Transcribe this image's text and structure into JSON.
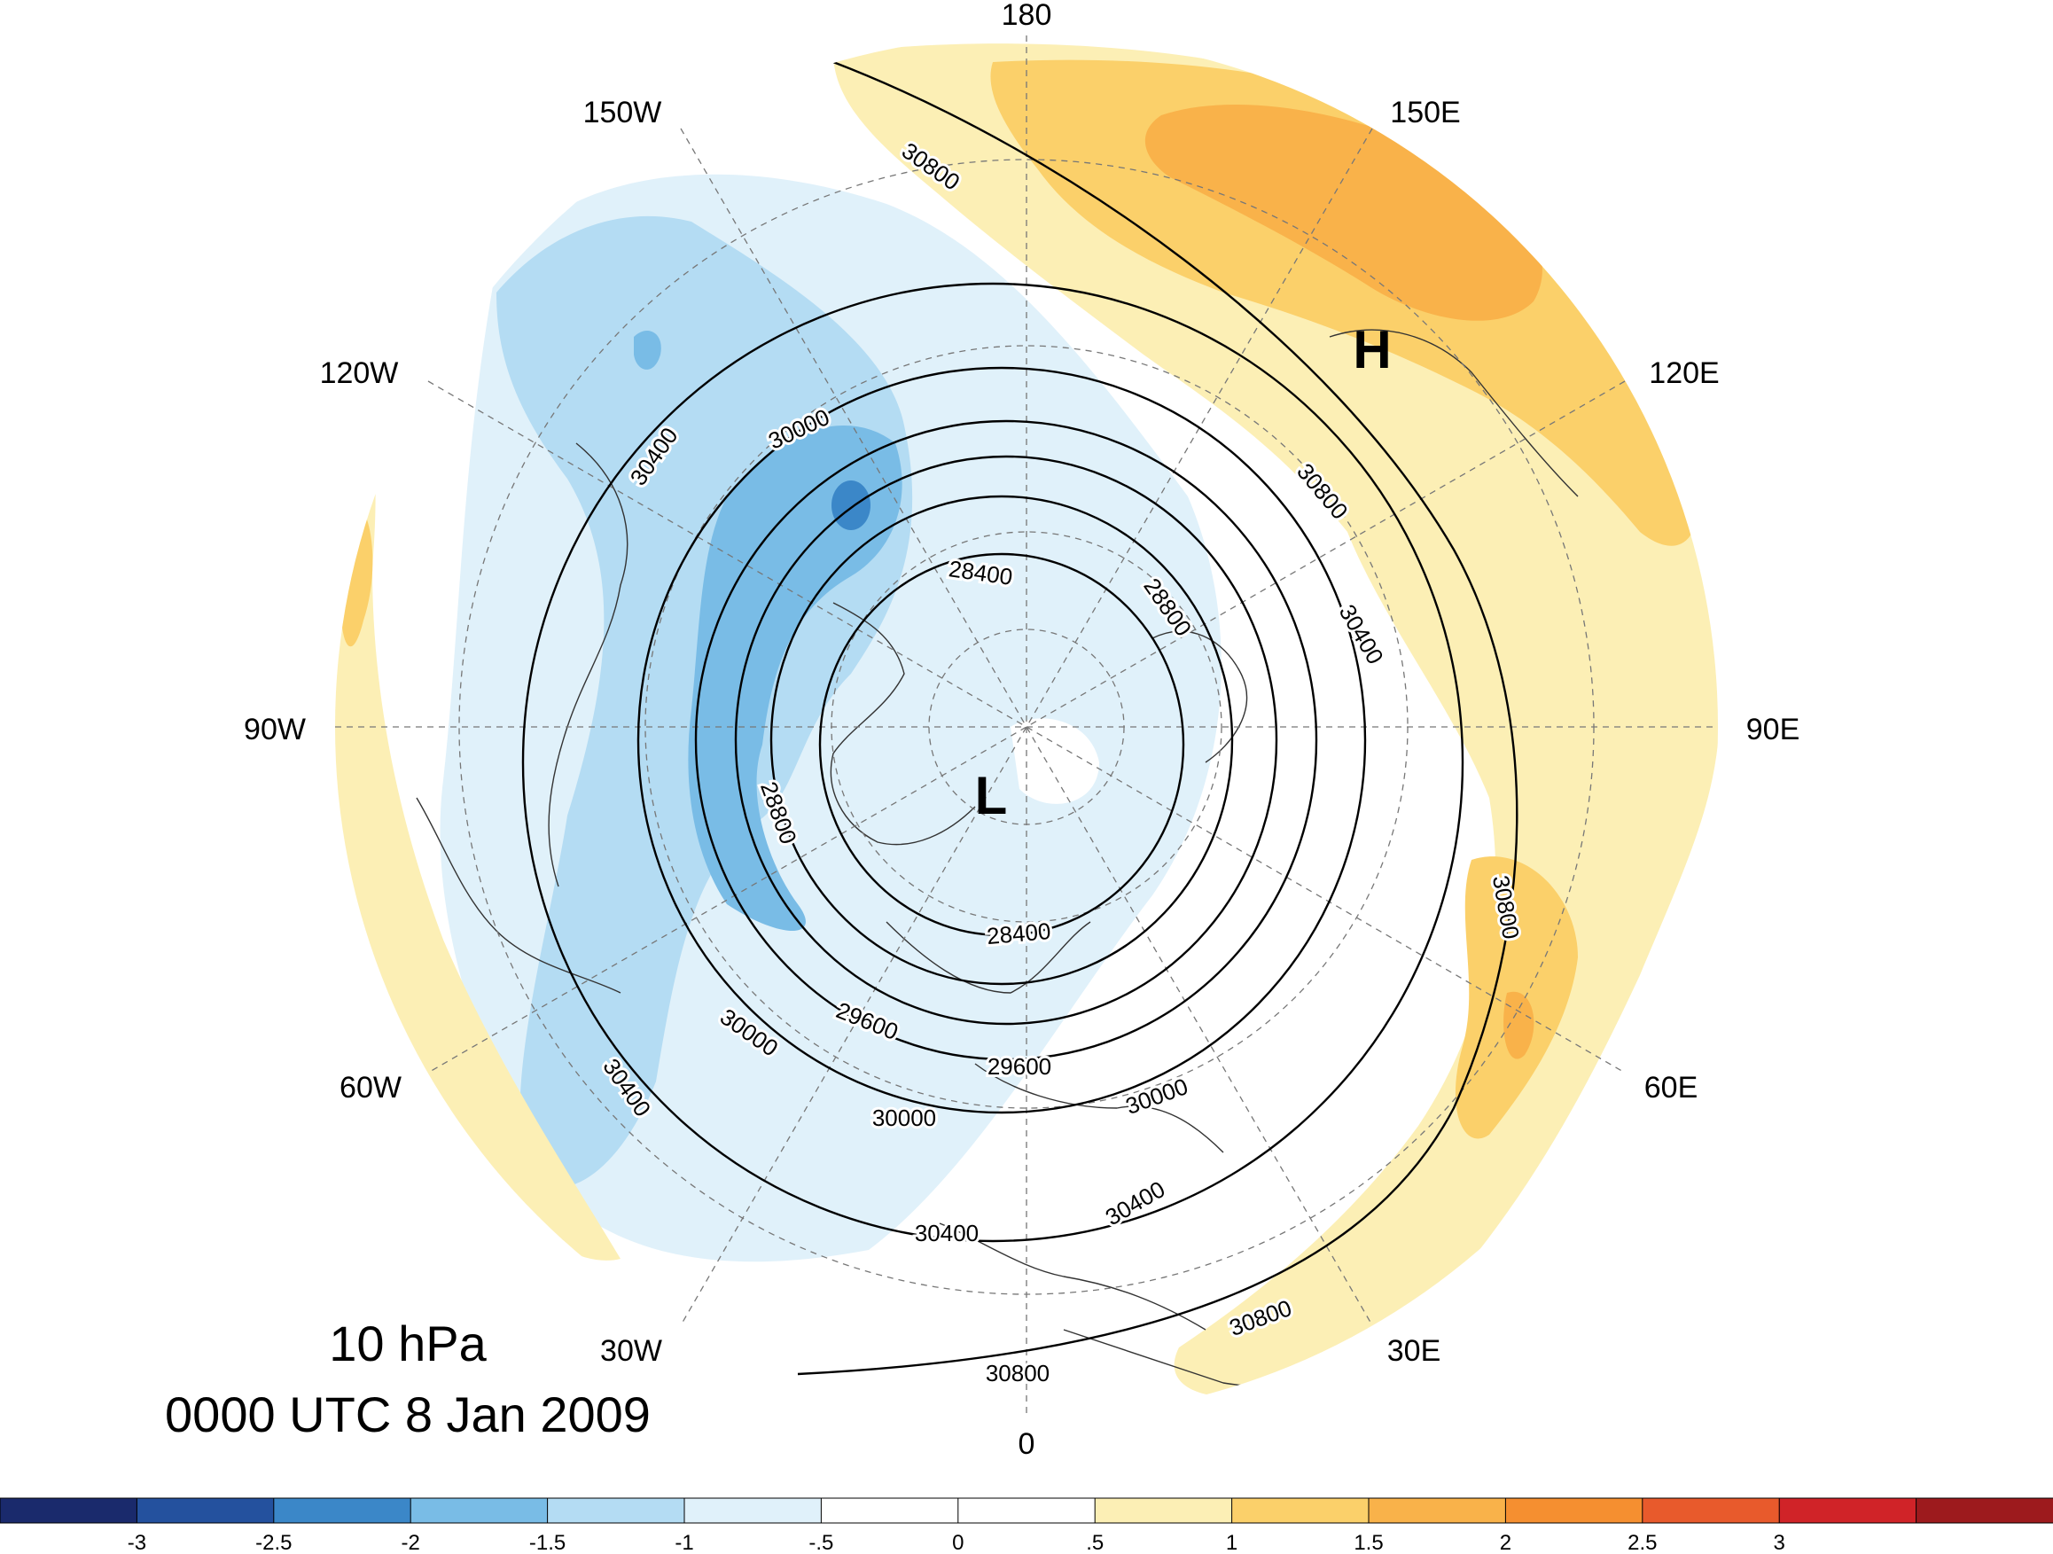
{
  "map": {
    "projection": "north-polar-stereographic",
    "center_meridian": "0",
    "lon_labels": [
      "180",
      "150E",
      "120E",
      "90E",
      "60E",
      "30E",
      "0",
      "30W",
      "60W",
      "90W",
      "120W",
      "150W"
    ],
    "center_label": "L",
    "high_label": "H",
    "contour_labels": {
      "c28400": "28400",
      "c28800": "28800",
      "c29600": "29600",
      "c30000": "30000",
      "c30400": "30400",
      "c30800": "30800"
    }
  },
  "caption": {
    "level": "10 hPa",
    "time": "0000 UTC 8 Jan 2009"
  },
  "colorbar": {
    "colors": [
      "#1a2a6c",
      "#24519e",
      "#3b87c8",
      "#79bce6",
      "#b4dcf3",
      "#e0f1fa",
      "#ffffff",
      "#ffffff",
      "#fcefb5",
      "#fbd06a",
      "#f9b24a",
      "#f58f30",
      "#e85a2c",
      "#d02328",
      "#9d1a1d"
    ],
    "ticks": [
      "-3",
      "-2.5",
      "-2",
      "-1.5",
      "-1",
      "-.5",
      "0",
      ".5",
      "1",
      "1.5",
      "2",
      "2.5",
      "3"
    ]
  }
}
